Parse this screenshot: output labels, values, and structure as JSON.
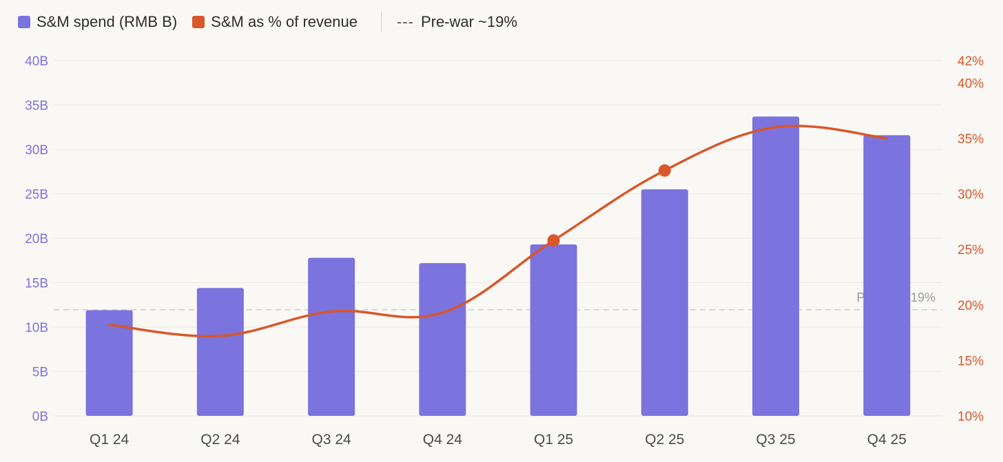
{
  "legend": {
    "bar_label": "S&M spend (RMB B)",
    "line_label": "S&M as % of revenue",
    "ref_symbol": "---",
    "ref_label": "Pre-war ~19%"
  },
  "colors": {
    "bar": "#7b73de",
    "line": "#d9572b",
    "grid": "#ece9e3",
    "ref": "#cfcbc4"
  },
  "chart_data": {
    "type": "bar",
    "categories": [
      "Q1 24",
      "Q2 24",
      "Q3 24",
      "Q4 24",
      "Q1 25",
      "Q2 25",
      "Q3 25",
      "Q4 25"
    ],
    "series": [
      {
        "name": "S&M spend (RMB B)",
        "type": "bar",
        "axis": "left",
        "values": [
          11.9,
          14.4,
          17.8,
          17.2,
          19.3,
          25.5,
          33.7,
          31.6
        ]
      },
      {
        "name": "S&M as % of revenue",
        "type": "line",
        "axis": "right",
        "values": [
          18.2,
          17.2,
          19.4,
          19.3,
          25.8,
          32.1,
          36.0,
          35.0
        ],
        "markers": [
          false,
          false,
          false,
          false,
          true,
          true,
          false,
          false
        ]
      }
    ],
    "reference_line": {
      "axis": "right",
      "value": 19,
      "label": "Pre-war ~19%"
    },
    "y_left": {
      "min": 0,
      "max": 40,
      "ticks": [
        0,
        5,
        10,
        15,
        20,
        25,
        30,
        35,
        40
      ],
      "tick_labels": [
        "0B",
        "5B",
        "10B",
        "15B",
        "20B",
        "25B",
        "30B",
        "35B",
        "40B"
      ]
    },
    "y_right": {
      "min": 10,
      "max": 42,
      "ticks": [
        10,
        15,
        20,
        25,
        30,
        35,
        40,
        42
      ],
      "tick_labels": [
        "10%",
        "15%",
        "20%",
        "25%",
        "30%",
        "35%",
        "40%",
        "42%"
      ]
    },
    "legend_position": "top-left",
    "grid": true
  }
}
